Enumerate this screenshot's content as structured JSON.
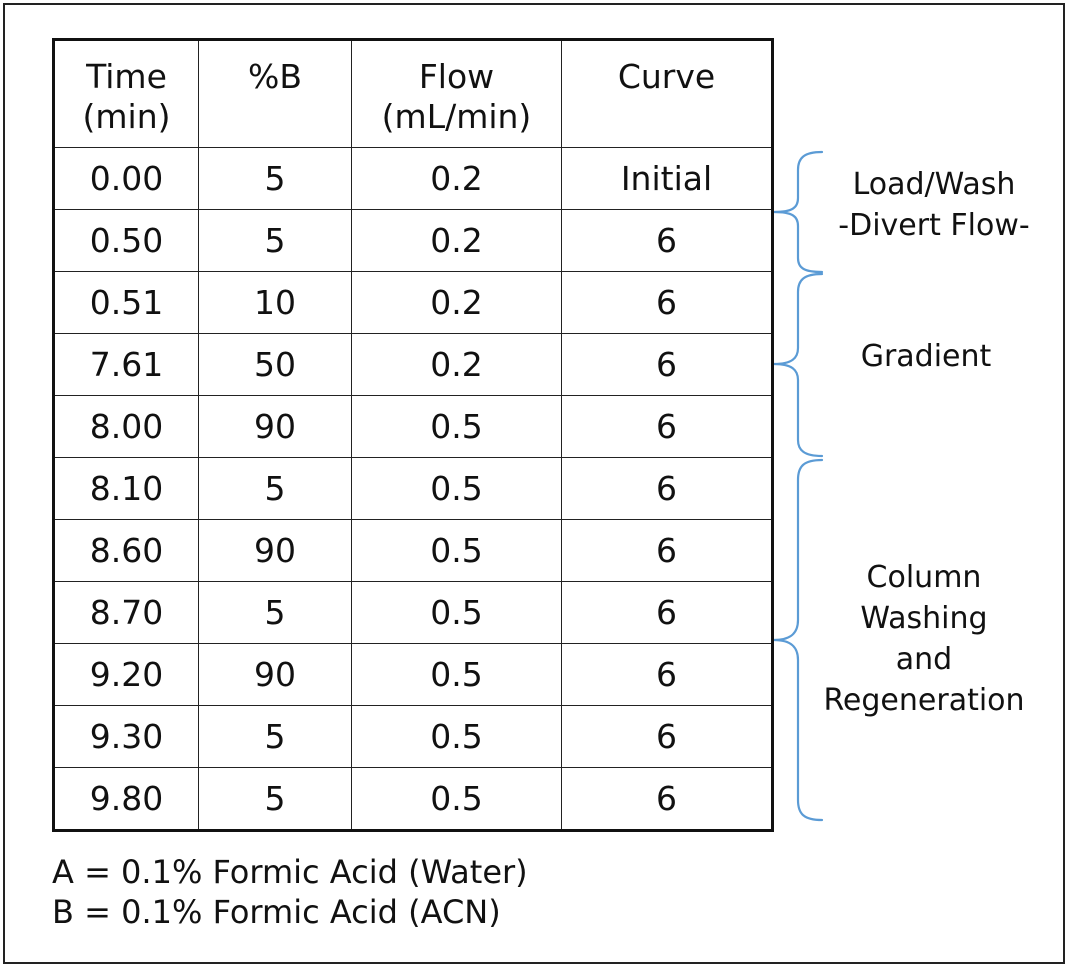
{
  "table": {
    "headers": [
      [
        "Time",
        "(min)"
      ],
      [
        "%B"
      ],
      [
        "Flow",
        "(mL/min)"
      ],
      [
        "Curve"
      ]
    ],
    "rows": [
      [
        "0.00",
        "5",
        "0.2",
        "Initial"
      ],
      [
        "0.50",
        "5",
        "0.2",
        "6"
      ],
      [
        "0.51",
        "10",
        "0.2",
        "6"
      ],
      [
        "7.61",
        "50",
        "0.2",
        "6"
      ],
      [
        "8.00",
        "90",
        "0.5",
        "6"
      ],
      [
        "8.10",
        "5",
        "0.5",
        "6"
      ],
      [
        "8.60",
        "90",
        "0.5",
        "6"
      ],
      [
        "8.70",
        "5",
        "0.5",
        "6"
      ],
      [
        "9.20",
        "90",
        "0.5",
        "6"
      ],
      [
        "9.30",
        "5",
        "0.5",
        "6"
      ],
      [
        "9.80",
        "5",
        "0.5",
        "6"
      ]
    ]
  },
  "phases": [
    {
      "lines": [
        "Load/Wash",
        "-Divert Flow-"
      ]
    },
    {
      "lines": [
        "Gradient"
      ]
    },
    {
      "lines": [
        "Column",
        "Washing",
        "and",
        "Regeneration"
      ]
    }
  ],
  "footnotes": [
    "A = 0.1% Formic Acid (Water)",
    "B = 0.1% Formic Acid (ACN)"
  ],
  "colors": {
    "brace": "#5b9bd5",
    "text": "#111111",
    "border": "#111111"
  }
}
